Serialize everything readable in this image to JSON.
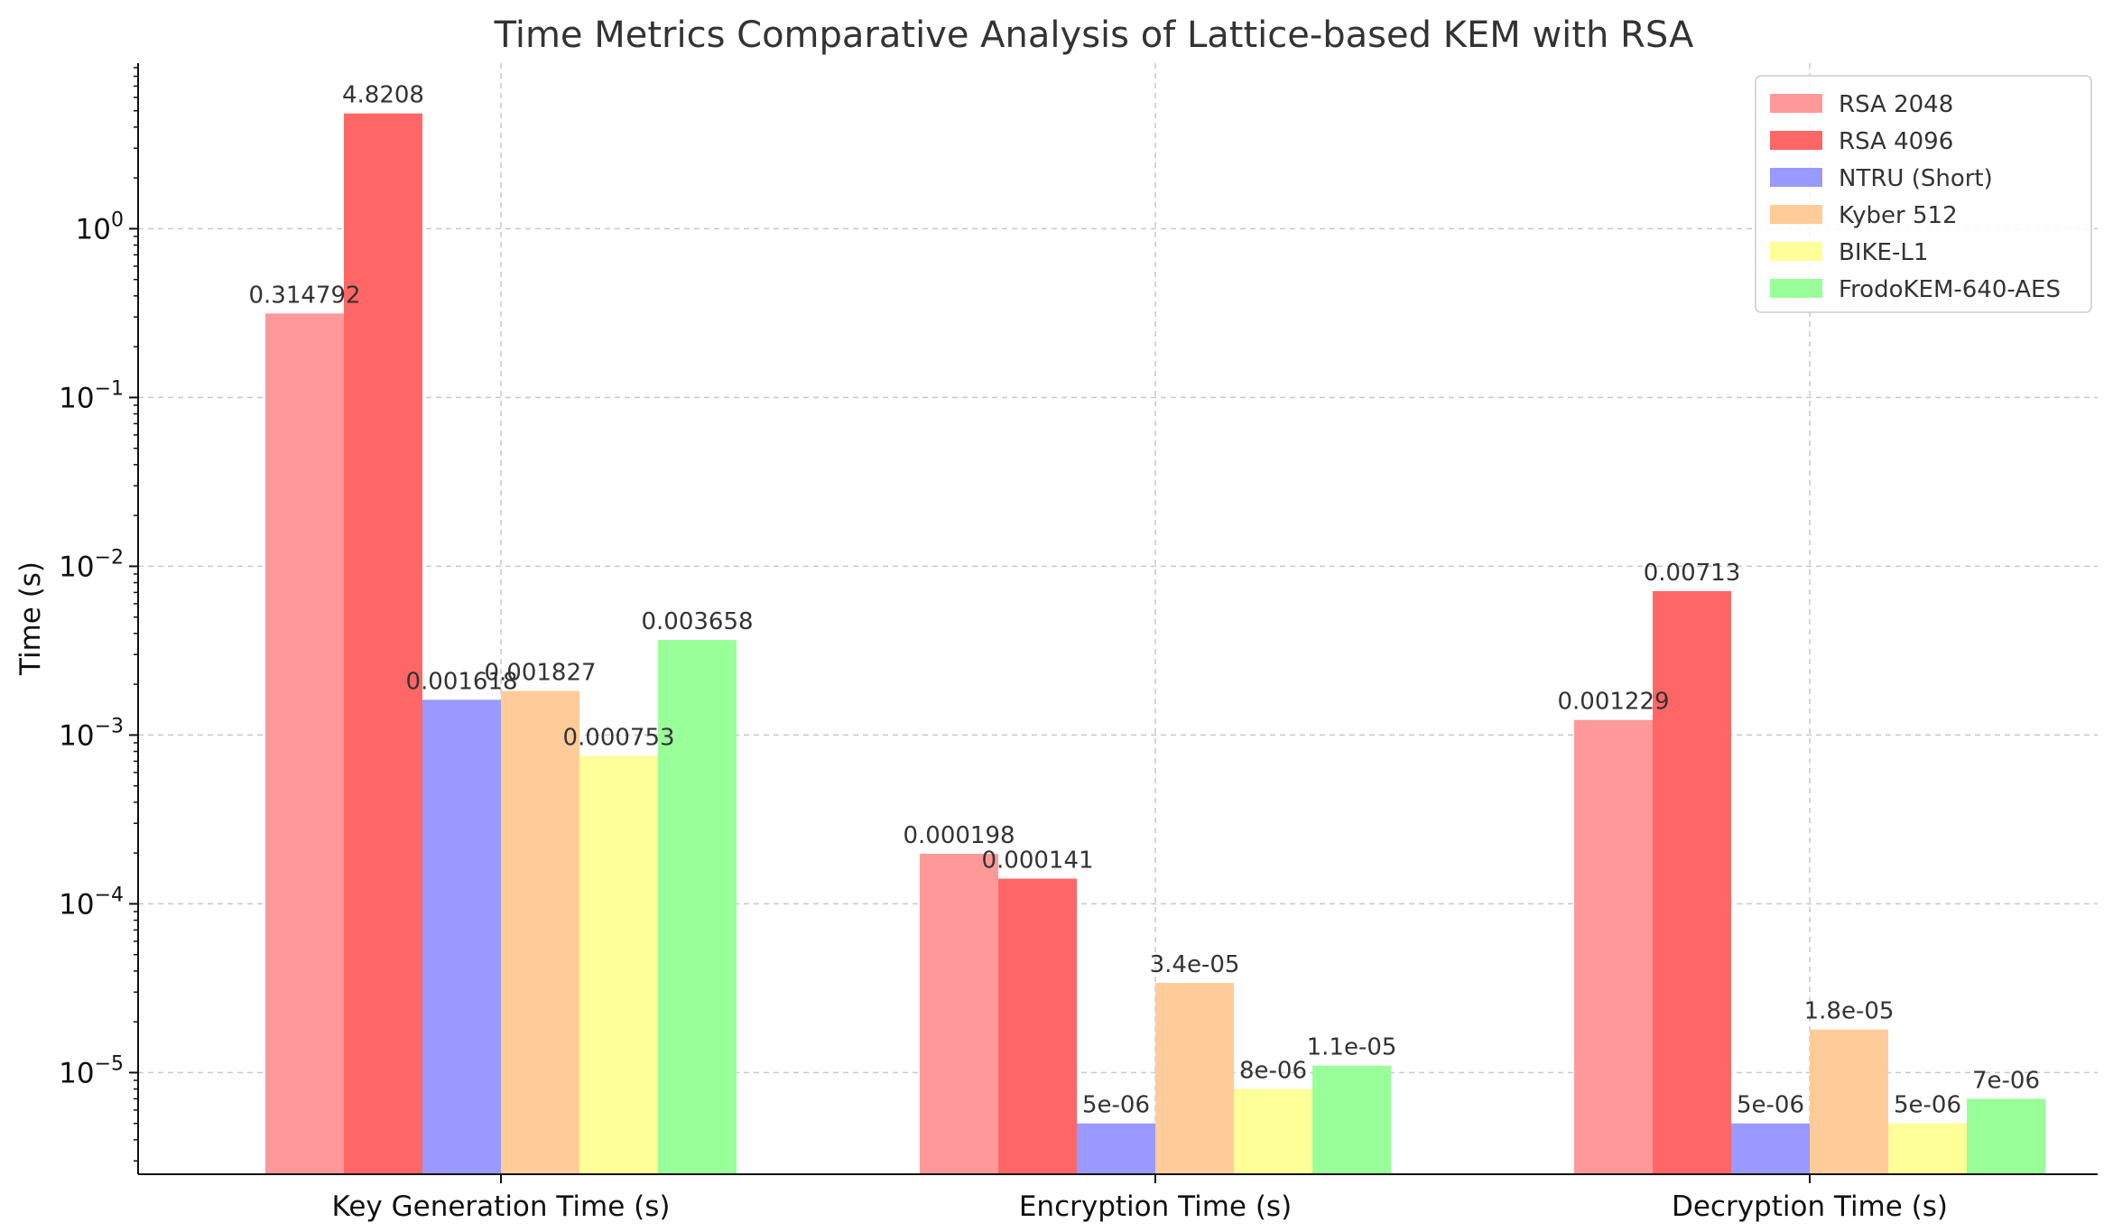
{
  "chart_data": {
    "type": "bar",
    "title": "Time Metrics Comparative Analysis of Lattice-based KEM with RSA",
    "xlabel": "",
    "ylabel": "Time (s)",
    "yscale": "log",
    "ylim": [
      2.5e-06,
      10
    ],
    "yticks": [
      {
        "value": 1e-05,
        "base": "10",
        "exp": "−5"
      },
      {
        "value": 0.0001,
        "base": "10",
        "exp": "−4"
      },
      {
        "value": 0.001,
        "base": "10",
        "exp": "−3"
      },
      {
        "value": 0.01,
        "base": "10",
        "exp": "−2"
      },
      {
        "value": 0.1,
        "base": "10",
        "exp": "−1"
      },
      {
        "value": 1,
        "base": "10",
        "exp": "0"
      }
    ],
    "grid": true,
    "legend_position": "top-right",
    "categories": [
      "Key Generation Time (s)",
      "Encryption Time (s)",
      "Decryption Time (s)"
    ],
    "series": [
      {
        "name": "RSA 2048",
        "color": "#ff9999",
        "values": [
          0.314792,
          0.000198,
          0.001229
        ],
        "labels": [
          "0.314792",
          "0.000198",
          "0.001229"
        ]
      },
      {
        "name": "RSA 4096",
        "color": "#ff6666",
        "values": [
          4.8208,
          0.000141,
          0.00713
        ],
        "labels": [
          "4.8208",
          "0.000141",
          "0.00713"
        ]
      },
      {
        "name": "NTRU (Short)",
        "color": "#9999ff",
        "values": [
          0.001618,
          5e-06,
          5e-06
        ],
        "labels": [
          "0.001618",
          "5e-06",
          "5e-06"
        ]
      },
      {
        "name": "Kyber 512",
        "color": "#ffcc99",
        "values": [
          0.001827,
          3.4e-05,
          1.8e-05
        ],
        "labels": [
          "0.001827",
          "3.4e-05",
          "1.8e-05"
        ]
      },
      {
        "name": "BIKE-L1",
        "color": "#ffff99",
        "values": [
          0.000753,
          8e-06,
          5e-06
        ],
        "labels": [
          "0.000753",
          "8e-06",
          "5e-06"
        ]
      },
      {
        "name": "FrodoKEM-640-AES",
        "color": "#99ff99",
        "values": [
          0.003658,
          1.1e-05,
          7e-06
        ],
        "labels": [
          "0.003658",
          "1.1e-05",
          "7e-06"
        ]
      }
    ]
  }
}
